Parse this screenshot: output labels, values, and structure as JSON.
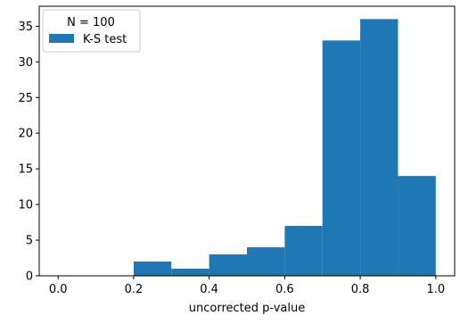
{
  "chart_data": {
    "type": "bar",
    "title": "",
    "xlabel": "uncorrected p-value",
    "ylabel": "",
    "xlim": [
      -0.05,
      1.05
    ],
    "ylim": [
      0,
      37.8
    ],
    "xticks": [
      0.0,
      0.2,
      0.4,
      0.6,
      0.8,
      1.0
    ],
    "xtick_labels": [
      "0.0",
      "0.2",
      "0.4",
      "0.6",
      "0.8",
      "1.0"
    ],
    "yticks": [
      0,
      5,
      10,
      15,
      20,
      25,
      30,
      35
    ],
    "ytick_labels": [
      "0",
      "5",
      "10",
      "15",
      "20",
      "25",
      "30",
      "35"
    ],
    "grid": false,
    "legend": {
      "title": "N = 100",
      "placement": "top-left",
      "entries": [
        "K-S test"
      ]
    },
    "series": [
      {
        "name": "K-S test",
        "color": "#1f77b4",
        "bin_edges": [
          0.0,
          0.1,
          0.2,
          0.3,
          0.4,
          0.5,
          0.6,
          0.7,
          0.8,
          0.9,
          1.0
        ],
        "counts": [
          0,
          0,
          2,
          1,
          3,
          4,
          7,
          33,
          36,
          14
        ]
      }
    ]
  }
}
